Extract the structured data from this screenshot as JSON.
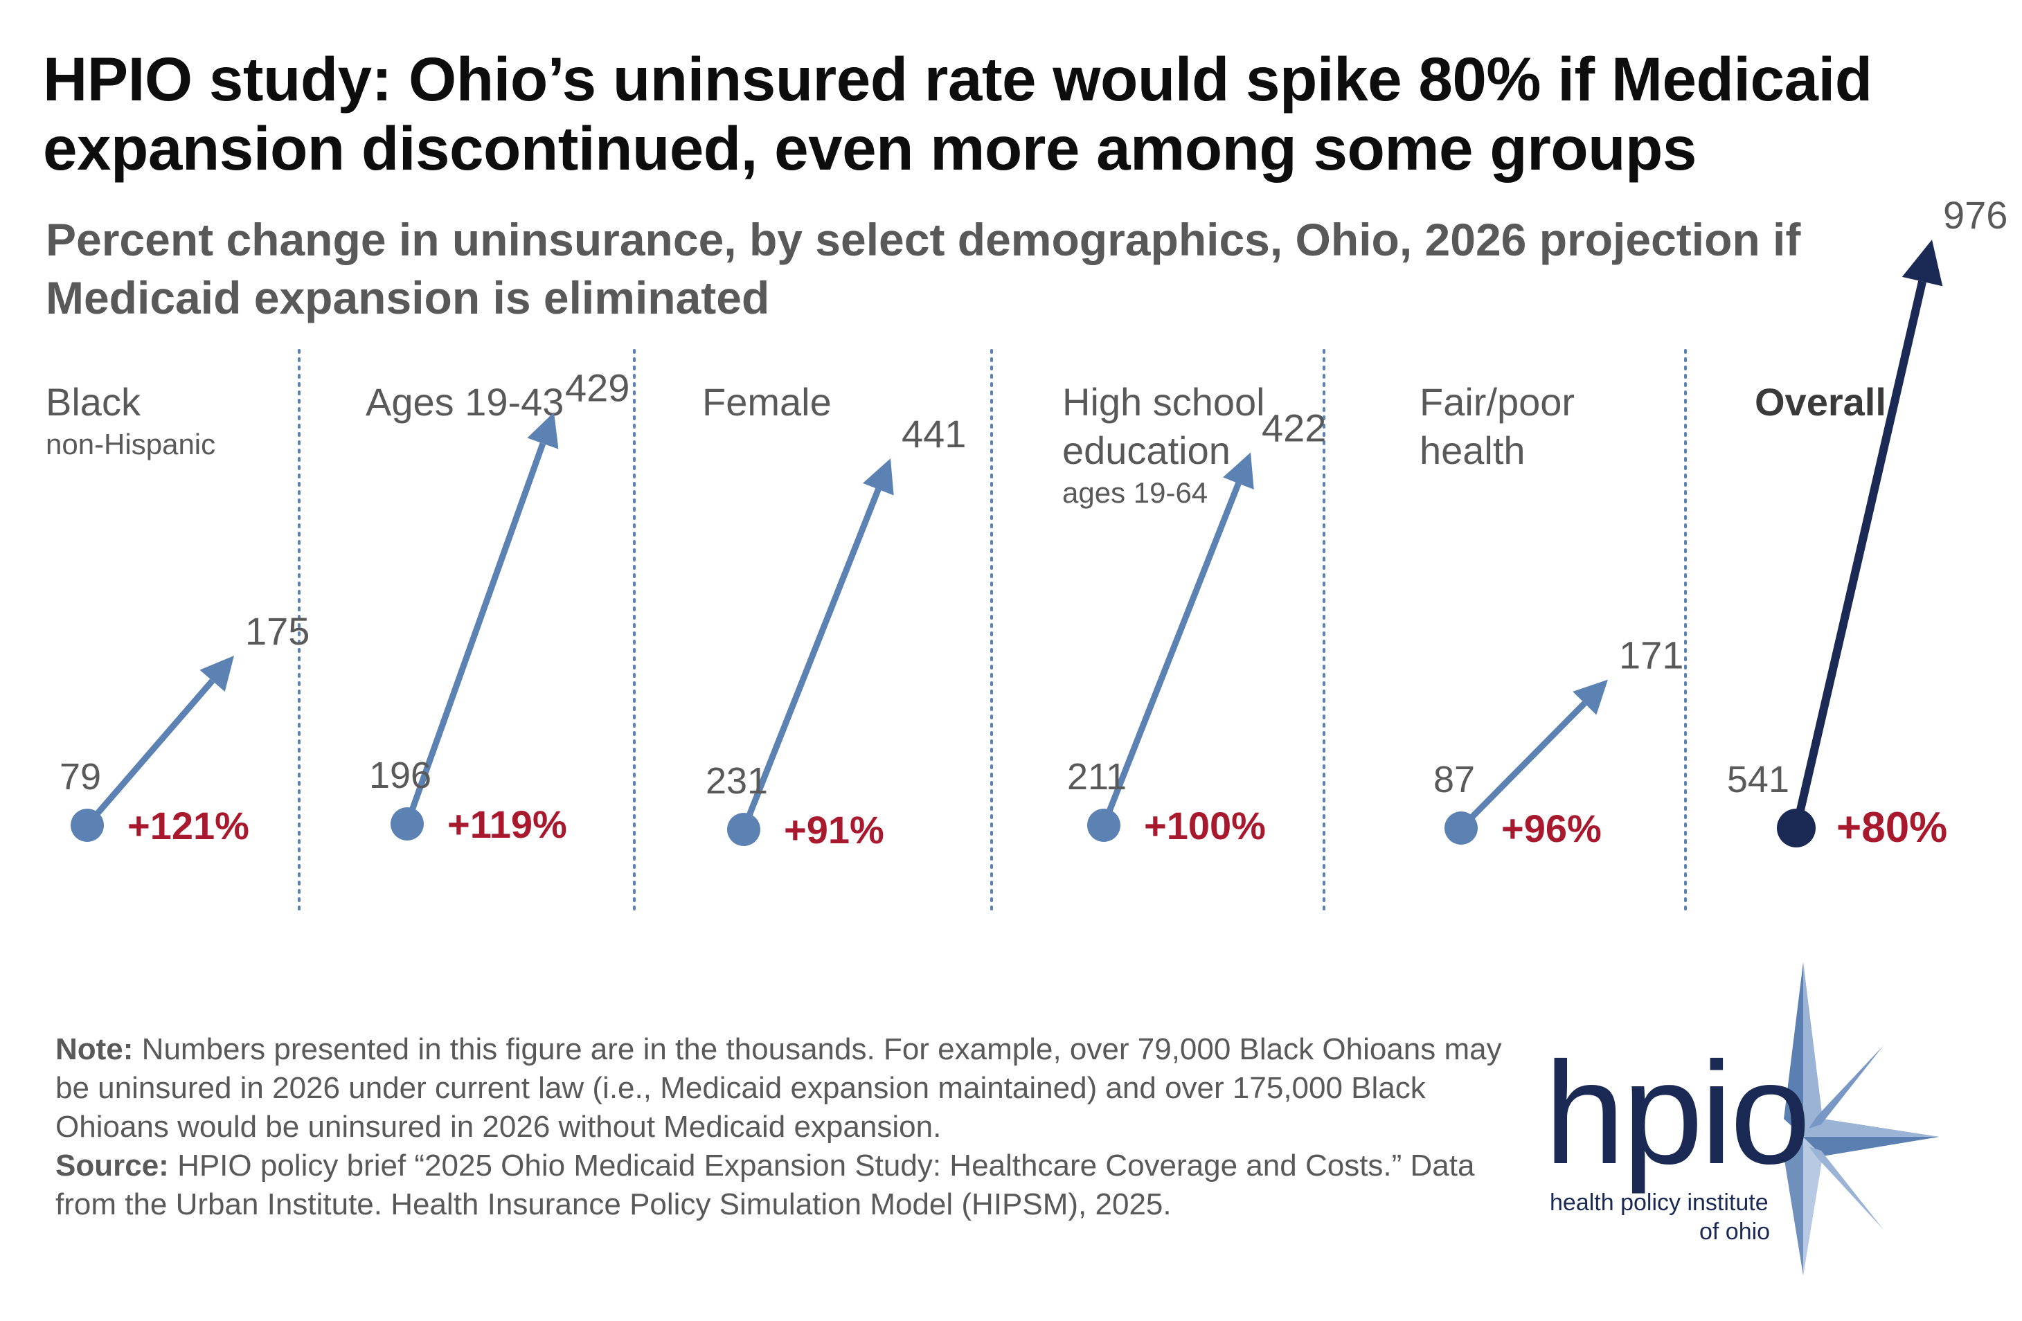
{
  "title": "HPIO study: Ohio’s uninsured rate would spike 80% if Medicaid expansion discontinued, even more among some groups",
  "subtitle": "Percent change in uninsurance, by select demographics, Ohio, 2026 projection if Medicaid expansion is eliminated",
  "note": {
    "note_label": "Note:",
    "note_text": "Numbers presented in this figure are in the thousands. For example, over 79,000 Black Ohioans may be uninsured in 2026 under current law (i.e., Medicaid expansion maintained) and over 175,000 Black Ohioans would be uninsured in 2026 without Medicaid expansion.",
    "source_label": "Source:",
    "source_text": "HPIO policy brief “2025 Ohio Medicaid Expansion Study: Healthcare Coverage and Costs.”  Data from the Urban Institute. Health Insurance Policy Simulation Model (HIPSM), 2025."
  },
  "logo": {
    "wordmark": "hpio",
    "tagline_line1": "health policy institute",
    "tagline_line2": "of ohio"
  },
  "colors": {
    "group_arrow": "#5b82b3",
    "overall_arrow": "#1b2a55",
    "pct_text": "#a8192e",
    "value_text": "#595959",
    "divider": "#5b82b3"
  },
  "chart_data": {
    "type": "slope",
    "title": "Percent change in uninsurance, by select demographics, Ohio, 2026 projection if Medicaid expansion is eliminated",
    "units": "thousands",
    "series": [
      {
        "label_line1": "Black",
        "label_line2": "",
        "sublabel": "non-Hispanic",
        "from": 79,
        "to": 175,
        "change": "+121%",
        "highlight": false
      },
      {
        "label_line1": "Ages 19-43",
        "label_line2": "",
        "sublabel": "",
        "from": 196,
        "to": 429,
        "change": "+119%",
        "highlight": false
      },
      {
        "label_line1": "Female",
        "label_line2": "",
        "sublabel": "",
        "from": 231,
        "to": 441,
        "change": "+91%",
        "highlight": false
      },
      {
        "label_line1": "High school",
        "label_line2": "education",
        "sublabel": "ages 19-64",
        "from": 211,
        "to": 422,
        "change": "+100%",
        "highlight": false
      },
      {
        "label_line1": "Fair/poor",
        "label_line2": "health",
        "sublabel": "",
        "from": 87,
        "to": 171,
        "change": "+96%",
        "highlight": false
      },
      {
        "label_line1": "Overall",
        "label_line2": "",
        "sublabel": "",
        "from": 541,
        "to": 976,
        "change": "+80%",
        "highlight": true
      }
    ]
  }
}
